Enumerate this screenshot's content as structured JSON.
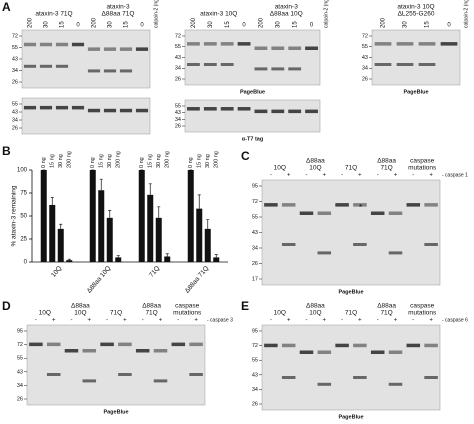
{
  "panel_letters": [
    "A",
    "B",
    "C",
    "D",
    "E"
  ],
  "gels": [
    {
      "headers": [
        [
          "ataxin-3 71Q"
        ],
        [
          "ataxin-3",
          "Δ88aa 71Q"
        ]
      ],
      "lanes": [
        200,
        30,
        15,
        0,
        200,
        30,
        15,
        0
      ],
      "side_label": "calpain-2 (ng)",
      "markers": [
        72,
        55,
        43,
        34,
        26
      ]
    },
    {
      "markers": [
        55,
        43,
        34,
        26
      ]
    },
    {
      "headers": [
        [
          "ataxin-3 10Q"
        ],
        [
          "ataxin-3",
          "Δ88aa 10Q"
        ]
      ],
      "lanes": [
        200,
        30,
        15,
        0,
        200,
        30,
        15,
        0
      ],
      "side_label": "calpain-2 (ng)",
      "markers": [
        72,
        55,
        43,
        34,
        26
      ],
      "footer": "PageBlue"
    },
    {
      "markers": [
        55,
        43,
        34,
        26
      ],
      "footer": "α-T7 tag"
    },
    {
      "headers": [
        [
          "ataxin-3 10Q",
          "ΔL255-G260"
        ]
      ],
      "lanes": [
        200,
        30,
        15,
        0
      ],
      "side_label": "calpain-2 (ng)",
      "markers": [
        72,
        55,
        43,
        34,
        26
      ],
      "footer": "PageBlue"
    },
    {
      "headers": [
        [
          "10Q"
        ],
        [
          "Δ88aa",
          "10Q"
        ],
        [
          "71Q"
        ],
        [
          "Δ88aa",
          "71Q"
        ],
        [
          "caspase",
          "mutations"
        ]
      ],
      "lanes": [
        "-",
        "+",
        "-",
        "+",
        "-",
        "+",
        "-",
        "+",
        "-",
        "+"
      ],
      "side_label": "- caspase 1",
      "markers": [
        95,
        72,
        55,
        43,
        34,
        26,
        17
      ],
      "footer": "PageBlue",
      "annotation": "*"
    },
    {
      "headers": [
        [
          "10Q"
        ],
        [
          "Δ88aa",
          "10Q"
        ],
        [
          "71Q"
        ],
        [
          "Δ88aa",
          "71Q"
        ],
        [
          "caspase",
          "mutations"
        ]
      ],
      "lanes": [
        "-",
        "+",
        "-",
        "+",
        "-",
        "+",
        "-",
        "+",
        "-",
        "+"
      ],
      "side_label": "- caspase 3",
      "markers": [
        95,
        72,
        55,
        43,
        34,
        26
      ],
      "footer": "PageBlue"
    },
    {
      "headers": [
        [
          "10Q"
        ],
        [
          "Δ88aa",
          "10Q"
        ],
        [
          "71Q"
        ],
        [
          "Δ88aa",
          "71Q"
        ],
        [
          "caspase",
          "mutations"
        ]
      ],
      "lanes": [
        "-",
        "+",
        "-",
        "+",
        "-",
        "+",
        "-",
        "+",
        "-",
        "+"
      ],
      "side_label": "- caspase 6",
      "markers": [
        95,
        72,
        55,
        43,
        34,
        26
      ],
      "footer": "PageBlue"
    }
  ],
  "chart_data": {
    "type": "bar",
    "y_label": "% ataxin-3 remaining",
    "categories": [
      "10Q",
      "Δ88aa 10Q",
      "71Q",
      "Δ88aa 71Q"
    ],
    "series": [
      {
        "name": "0 ng",
        "color": "#111111",
        "values": [
          100,
          100,
          100,
          100
        ],
        "errors": [
          0,
          0,
          0,
          0
        ]
      },
      {
        "name": "15 ng",
        "color": "#111111",
        "values": [
          62,
          78,
          73,
          58
        ],
        "errors": [
          8,
          12,
          12,
          15
        ]
      },
      {
        "name": "30 ng",
        "color": "#111111",
        "values": [
          36,
          48,
          48,
          36
        ],
        "errors": [
          5,
          8,
          12,
          10
        ]
      },
      {
        "name": "200 ng",
        "color": "#111111",
        "values": [
          2,
          5,
          6,
          5
        ],
        "errors": [
          1,
          2,
          3,
          3
        ]
      }
    ],
    "ylim": [
      0,
      100
    ],
    "yticks": [
      0,
      25,
      50,
      75,
      100
    ]
  }
}
